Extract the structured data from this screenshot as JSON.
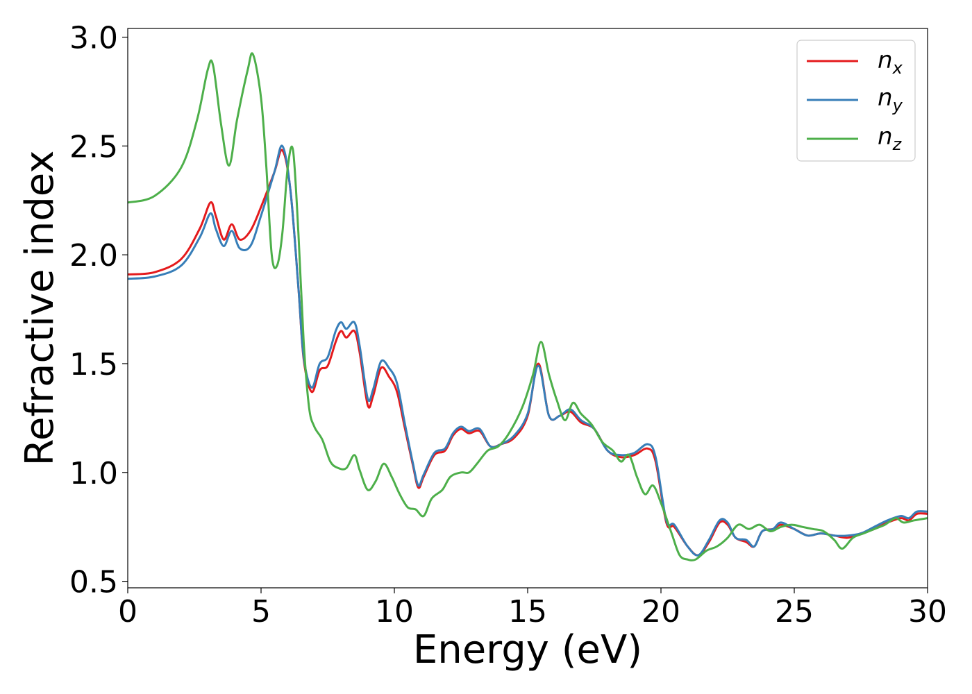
{
  "chart_data": {
    "type": "line",
    "title": "",
    "xlabel": "Energy (eV)",
    "ylabel": "Refractive index",
    "xlim": [
      0,
      30
    ],
    "ylim": [
      0.47,
      3.04
    ],
    "xticks": [
      "0",
      "5",
      "10",
      "15",
      "20",
      "25",
      "30"
    ],
    "xtick_values": [
      0,
      5,
      10,
      15,
      20,
      25,
      30
    ],
    "yticks": [
      "0.5",
      "1.0",
      "1.5",
      "2.0",
      "2.5",
      "3.0"
    ],
    "ytick_values": [
      0.5,
      1.0,
      1.5,
      2.0,
      2.5,
      3.0
    ],
    "grid": false,
    "legend": {
      "position": "top-right"
    },
    "series": [
      {
        "name": "n_x",
        "label_main": "n",
        "label_sub": "x",
        "color": "#e41a1c",
        "points": [
          [
            0,
            1.91
          ],
          [
            1,
            1.92
          ],
          [
            2,
            1.98
          ],
          [
            2.7,
            2.12
          ],
          [
            3.1,
            2.24
          ],
          [
            3.3,
            2.18
          ],
          [
            3.6,
            2.07
          ],
          [
            3.9,
            2.14
          ],
          [
            4.2,
            2.07
          ],
          [
            4.6,
            2.11
          ],
          [
            5.0,
            2.22
          ],
          [
            5.5,
            2.38
          ],
          [
            5.8,
            2.48
          ],
          [
            6.1,
            2.3
          ],
          [
            6.4,
            1.85
          ],
          [
            6.6,
            1.52
          ],
          [
            6.9,
            1.37
          ],
          [
            7.2,
            1.47
          ],
          [
            7.5,
            1.49
          ],
          [
            7.8,
            1.6
          ],
          [
            8.0,
            1.65
          ],
          [
            8.2,
            1.62
          ],
          [
            8.5,
            1.65
          ],
          [
            8.7,
            1.55
          ],
          [
            9.0,
            1.31
          ],
          [
            9.2,
            1.35
          ],
          [
            9.5,
            1.48
          ],
          [
            9.8,
            1.44
          ],
          [
            10.1,
            1.37
          ],
          [
            10.4,
            1.2
          ],
          [
            10.7,
            1.03
          ],
          [
            10.9,
            0.93
          ],
          [
            11.1,
            0.98
          ],
          [
            11.5,
            1.08
          ],
          [
            11.9,
            1.1
          ],
          [
            12.2,
            1.17
          ],
          [
            12.5,
            1.2
          ],
          [
            12.8,
            1.18
          ],
          [
            13.2,
            1.19
          ],
          [
            13.6,
            1.12
          ],
          [
            14.0,
            1.13
          ],
          [
            14.5,
            1.16
          ],
          [
            15.0,
            1.26
          ],
          [
            15.4,
            1.5
          ],
          [
            15.8,
            1.26
          ],
          [
            16.2,
            1.26
          ],
          [
            16.6,
            1.28
          ],
          [
            17.0,
            1.23
          ],
          [
            17.5,
            1.2
          ],
          [
            18.0,
            1.1
          ],
          [
            18.5,
            1.07
          ],
          [
            19.0,
            1.08
          ],
          [
            19.5,
            1.11
          ],
          [
            19.8,
            1.05
          ],
          [
            20.2,
            0.77
          ],
          [
            20.5,
            0.75
          ],
          [
            21.0,
            0.66
          ],
          [
            21.4,
            0.62
          ],
          [
            21.8,
            0.68
          ],
          [
            22.2,
            0.77
          ],
          [
            22.5,
            0.76
          ],
          [
            22.8,
            0.7
          ],
          [
            23.2,
            0.68
          ],
          [
            23.5,
            0.66
          ],
          [
            23.8,
            0.73
          ],
          [
            24.2,
            0.74
          ],
          [
            24.5,
            0.76
          ],
          [
            25.0,
            0.74
          ],
          [
            25.5,
            0.71
          ],
          [
            26.0,
            0.72
          ],
          [
            26.5,
            0.71
          ],
          [
            27.0,
            0.7
          ],
          [
            27.5,
            0.72
          ],
          [
            28.0,
            0.74
          ],
          [
            28.5,
            0.77
          ],
          [
            29.0,
            0.79
          ],
          [
            29.3,
            0.78
          ],
          [
            29.6,
            0.81
          ],
          [
            30,
            0.81
          ]
        ]
      },
      {
        "name": "n_y",
        "label_main": "n",
        "label_sub": "y",
        "color": "#377eb8",
        "points": [
          [
            0,
            1.89
          ],
          [
            1,
            1.9
          ],
          [
            2,
            1.95
          ],
          [
            2.7,
            2.08
          ],
          [
            3.1,
            2.19
          ],
          [
            3.3,
            2.12
          ],
          [
            3.6,
            2.04
          ],
          [
            3.9,
            2.11
          ],
          [
            4.2,
            2.03
          ],
          [
            4.6,
            2.04
          ],
          [
            5.0,
            2.18
          ],
          [
            5.5,
            2.38
          ],
          [
            5.8,
            2.5
          ],
          [
            6.1,
            2.3
          ],
          [
            6.4,
            1.85
          ],
          [
            6.6,
            1.53
          ],
          [
            6.9,
            1.39
          ],
          [
            7.2,
            1.5
          ],
          [
            7.5,
            1.53
          ],
          [
            7.8,
            1.65
          ],
          [
            8.0,
            1.69
          ],
          [
            8.2,
            1.66
          ],
          [
            8.5,
            1.69
          ],
          [
            8.7,
            1.58
          ],
          [
            9.0,
            1.34
          ],
          [
            9.2,
            1.38
          ],
          [
            9.5,
            1.51
          ],
          [
            9.8,
            1.48
          ],
          [
            10.1,
            1.41
          ],
          [
            10.4,
            1.22
          ],
          [
            10.7,
            1.04
          ],
          [
            10.9,
            0.94
          ],
          [
            11.1,
            0.99
          ],
          [
            11.5,
            1.09
          ],
          [
            11.9,
            1.11
          ],
          [
            12.2,
            1.18
          ],
          [
            12.5,
            1.21
          ],
          [
            12.8,
            1.19
          ],
          [
            13.2,
            1.2
          ],
          [
            13.6,
            1.12
          ],
          [
            14.0,
            1.13
          ],
          [
            14.5,
            1.17
          ],
          [
            15.0,
            1.27
          ],
          [
            15.4,
            1.49
          ],
          [
            15.8,
            1.26
          ],
          [
            16.2,
            1.26
          ],
          [
            16.6,
            1.29
          ],
          [
            17.0,
            1.24
          ],
          [
            17.5,
            1.2
          ],
          [
            18.0,
            1.1
          ],
          [
            18.5,
            1.08
          ],
          [
            19.0,
            1.09
          ],
          [
            19.5,
            1.13
          ],
          [
            19.8,
            1.07
          ],
          [
            20.2,
            0.78
          ],
          [
            20.5,
            0.76
          ],
          [
            21.0,
            0.66
          ],
          [
            21.4,
            0.62
          ],
          [
            21.8,
            0.69
          ],
          [
            22.2,
            0.78
          ],
          [
            22.5,
            0.77
          ],
          [
            22.8,
            0.7
          ],
          [
            23.2,
            0.69
          ],
          [
            23.5,
            0.66
          ],
          [
            23.8,
            0.73
          ],
          [
            24.2,
            0.74
          ],
          [
            24.5,
            0.77
          ],
          [
            25.0,
            0.74
          ],
          [
            25.5,
            0.71
          ],
          [
            26.0,
            0.72
          ],
          [
            26.5,
            0.71
          ],
          [
            27.0,
            0.71
          ],
          [
            27.5,
            0.72
          ],
          [
            28.0,
            0.75
          ],
          [
            28.5,
            0.78
          ],
          [
            29.0,
            0.8
          ],
          [
            29.3,
            0.79
          ],
          [
            29.6,
            0.82
          ],
          [
            30,
            0.82
          ]
        ]
      },
      {
        "name": "n_z",
        "label_main": "n",
        "label_sub": "z",
        "color": "#4daf4a",
        "points": [
          [
            0,
            2.24
          ],
          [
            1,
            2.27
          ],
          [
            2,
            2.4
          ],
          [
            2.6,
            2.62
          ],
          [
            3.0,
            2.85
          ],
          [
            3.2,
            2.87
          ],
          [
            3.5,
            2.6
          ],
          [
            3.8,
            2.41
          ],
          [
            4.1,
            2.62
          ],
          [
            4.5,
            2.85
          ],
          [
            4.7,
            2.92
          ],
          [
            5.0,
            2.72
          ],
          [
            5.2,
            2.4
          ],
          [
            5.4,
            2.0
          ],
          [
            5.6,
            1.95
          ],
          [
            5.8,
            2.1
          ],
          [
            6.0,
            2.4
          ],
          [
            6.2,
            2.48
          ],
          [
            6.4,
            2.1
          ],
          [
            6.6,
            1.6
          ],
          [
            6.8,
            1.3
          ],
          [
            7.0,
            1.21
          ],
          [
            7.3,
            1.15
          ],
          [
            7.6,
            1.05
          ],
          [
            7.9,
            1.02
          ],
          [
            8.2,
            1.02
          ],
          [
            8.5,
            1.08
          ],
          [
            8.7,
            1.01
          ],
          [
            9.0,
            0.92
          ],
          [
            9.3,
            0.96
          ],
          [
            9.6,
            1.04
          ],
          [
            9.9,
            0.98
          ],
          [
            10.2,
            0.9
          ],
          [
            10.5,
            0.84
          ],
          [
            10.8,
            0.83
          ],
          [
            11.1,
            0.8
          ],
          [
            11.4,
            0.88
          ],
          [
            11.8,
            0.92
          ],
          [
            12.1,
            0.98
          ],
          [
            12.5,
            1.0
          ],
          [
            12.8,
            1.0
          ],
          [
            13.1,
            1.04
          ],
          [
            13.5,
            1.1
          ],
          [
            13.9,
            1.12
          ],
          [
            14.3,
            1.18
          ],
          [
            14.8,
            1.3
          ],
          [
            15.2,
            1.45
          ],
          [
            15.5,
            1.6
          ],
          [
            15.8,
            1.45
          ],
          [
            16.1,
            1.33
          ],
          [
            16.4,
            1.24
          ],
          [
            16.7,
            1.32
          ],
          [
            17.0,
            1.27
          ],
          [
            17.4,
            1.22
          ],
          [
            17.8,
            1.14
          ],
          [
            18.2,
            1.1
          ],
          [
            18.5,
            1.05
          ],
          [
            18.8,
            1.08
          ],
          [
            19.1,
            0.98
          ],
          [
            19.4,
            0.9
          ],
          [
            19.7,
            0.94
          ],
          [
            20.0,
            0.86
          ],
          [
            20.4,
            0.72
          ],
          [
            20.7,
            0.62
          ],
          [
            21.0,
            0.6
          ],
          [
            21.3,
            0.6
          ],
          [
            21.7,
            0.64
          ],
          [
            22.1,
            0.66
          ],
          [
            22.5,
            0.7
          ],
          [
            22.9,
            0.76
          ],
          [
            23.3,
            0.74
          ],
          [
            23.7,
            0.76
          ],
          [
            24.1,
            0.73
          ],
          [
            24.5,
            0.75
          ],
          [
            24.9,
            0.76
          ],
          [
            25.3,
            0.75
          ],
          [
            25.7,
            0.74
          ],
          [
            26.1,
            0.73
          ],
          [
            26.5,
            0.69
          ],
          [
            26.8,
            0.65
          ],
          [
            27.2,
            0.7
          ],
          [
            27.6,
            0.72
          ],
          [
            28.0,
            0.74
          ],
          [
            28.4,
            0.76
          ],
          [
            28.8,
            0.79
          ],
          [
            29.1,
            0.77
          ],
          [
            29.5,
            0.78
          ],
          [
            30,
            0.79
          ]
        ]
      }
    ]
  }
}
